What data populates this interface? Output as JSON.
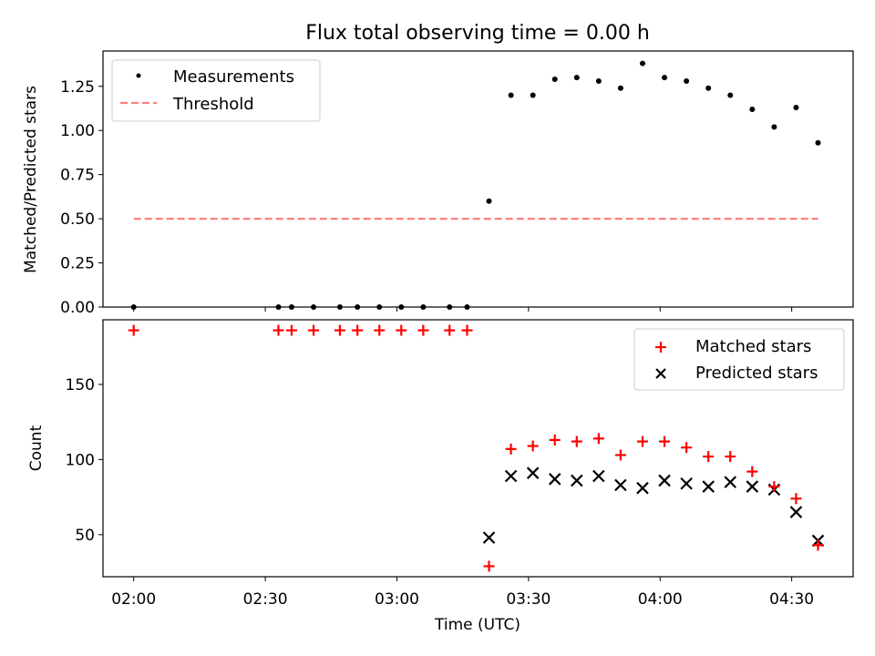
{
  "chart_data": [
    {
      "type": "scatter",
      "title": "Flux total observing time = 0.00 h",
      "xlabel": "",
      "ylabel": "Matched/Predicted stars",
      "ylim": [
        0.0,
        1.45
      ],
      "yticks": [
        0.0,
        0.25,
        0.5,
        0.75,
        1.0,
        1.25
      ],
      "ytick_labels": [
        "0.00",
        "0.25",
        "0.50",
        "0.75",
        "1.00",
        "1.25"
      ],
      "legend_position": "top-left",
      "series": [
        {
          "name": "Measurements",
          "marker": "dot",
          "color": "#000000",
          "x": [
            "02:00",
            "02:33",
            "02:36",
            "02:41",
            "02:47",
            "02:51",
            "02:56",
            "03:01",
            "03:06",
            "03:12",
            "03:16",
            "03:21",
            "03:26",
            "03:31",
            "03:36",
            "03:41",
            "03:46",
            "03:51",
            "03:56",
            "04:01",
            "04:06",
            "04:11",
            "04:16",
            "04:21",
            "04:26",
            "04:31",
            "04:36"
          ],
          "y": [
            0,
            0,
            0,
            0,
            0,
            0,
            0,
            0,
            0,
            0,
            0,
            0.6,
            1.2,
            1.2,
            1.29,
            1.3,
            1.28,
            1.24,
            1.38,
            1.3,
            1.28,
            1.24,
            1.2,
            1.12,
            1.02,
            1.13,
            0.93
          ]
        },
        {
          "name": "Threshold",
          "style": "dashed",
          "color": "#ff7f7f",
          "x": [
            "02:00",
            "04:36"
          ],
          "y": [
            0.5,
            0.5
          ]
        }
      ]
    },
    {
      "type": "scatter",
      "title": "",
      "xlabel": "Time (UTC)",
      "ylabel": "Count",
      "ylim": [
        22,
        193
      ],
      "yticks": [
        50,
        100,
        150
      ],
      "ytick_labels": [
        "50",
        "100",
        "150"
      ],
      "xlim": [
        "01:53",
        "04:44"
      ],
      "xticks": [
        "02:00",
        "02:30",
        "03:00",
        "03:30",
        "04:00",
        "04:30"
      ],
      "legend_position": "top-right",
      "series": [
        {
          "name": "Matched stars",
          "marker": "plus",
          "color": "#ff0000",
          "x": [
            "02:00",
            "02:33",
            "02:36",
            "02:41",
            "02:47",
            "02:51",
            "02:56",
            "03:01",
            "03:06",
            "03:12",
            "03:16",
            "03:21",
            "03:26",
            "03:31",
            "03:36",
            "03:41",
            "03:46",
            "03:51",
            "03:56",
            "04:01",
            "04:06",
            "04:11",
            "04:16",
            "04:21",
            "04:26",
            "04:31",
            "04:36"
          ],
          "y": [
            186,
            186,
            186,
            186,
            186,
            186,
            186,
            186,
            186,
            186,
            186,
            29,
            107,
            109,
            113,
            112,
            114,
            103,
            112,
            112,
            108,
            102,
            102,
            92,
            82,
            74,
            43
          ]
        },
        {
          "name": "Predicted stars",
          "marker": "x",
          "color": "#000000",
          "x": [
            "03:21",
            "03:26",
            "03:31",
            "03:36",
            "03:41",
            "03:46",
            "03:51",
            "03:56",
            "04:01",
            "04:06",
            "04:11",
            "04:16",
            "04:21",
            "04:26",
            "04:31",
            "04:36"
          ],
          "y": [
            48,
            89,
            91,
            87,
            86,
            89,
            83,
            81,
            86,
            84,
            82,
            85,
            82,
            80,
            65,
            46
          ]
        }
      ]
    }
  ]
}
